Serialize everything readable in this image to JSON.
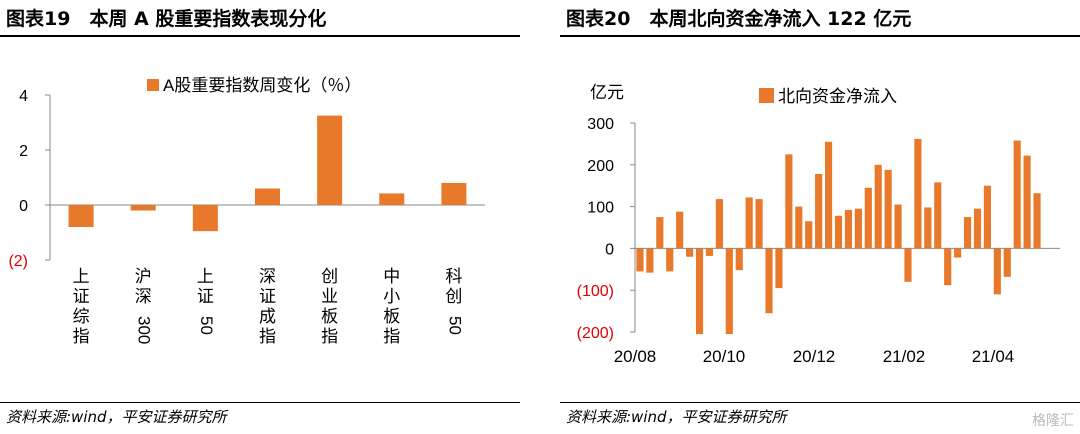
{
  "left": {
    "title": "图表19　本周 A 股重要指数表现分化",
    "source": "资料来源:wind，平安证券研究所"
  },
  "right": {
    "title": "图表20　本周北向资金净流入 122 亿元",
    "source": "资料来源:wind，平安证券研究所"
  },
  "watermark": "格隆汇",
  "colors": {
    "bar": "#E8792A",
    "negative_label": "#E00000",
    "axis": "#888888"
  },
  "chart_data": [
    {
      "type": "bar",
      "legend": "A股重要指数周变化（％）",
      "categories": [
        "上证综指",
        "沪深300",
        "上证50",
        "深证成指",
        "创业板指",
        "中小板指",
        "科创50"
      ],
      "values": [
        -0.8,
        -0.2,
        -0.95,
        0.6,
        3.25,
        0.42,
        0.8
      ],
      "ylim": [
        -2,
        4
      ],
      "yticks": [
        "4",
        "2",
        "0",
        "(2)"
      ],
      "ytick_values": [
        4,
        2,
        0,
        -2
      ],
      "grid": false,
      "legend_position": "top"
    },
    {
      "type": "bar",
      "legend": "北向资金净流入",
      "ylabel": "亿元",
      "ylim": [
        -200,
        300
      ],
      "yticks": [
        "300",
        "200",
        "100",
        "0",
        "(100)",
        "(200)"
      ],
      "ytick_values": [
        300,
        200,
        100,
        0,
        -100,
        -200
      ],
      "xtick_labels": [
        "20/08",
        "20/10",
        "20/12",
        "21/02",
        "21/04"
      ],
      "grid": false,
      "legend_position": "top",
      "values": [
        -55,
        -58,
        75,
        -55,
        88,
        -20,
        -205,
        -18,
        118,
        -205,
        -52,
        122,
        118,
        -155,
        -95,
        225,
        100,
        65,
        178,
        255,
        78,
        92,
        95,
        145,
        200,
        188,
        105,
        -80,
        262,
        98,
        158,
        -88,
        -22,
        75,
        95,
        150,
        -110,
        -68,
        258,
        222,
        132
      ]
    }
  ]
}
